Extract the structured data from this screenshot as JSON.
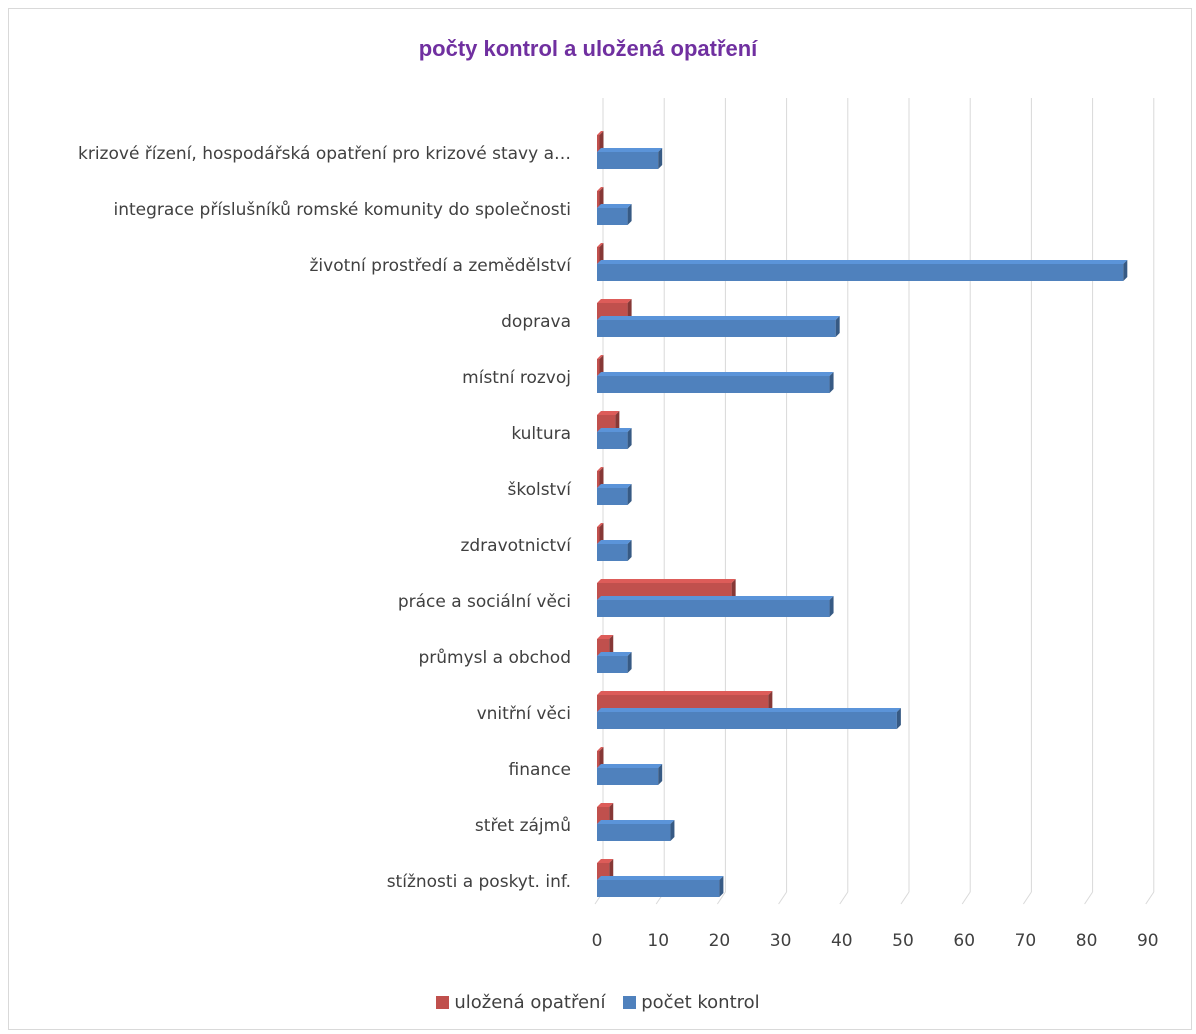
{
  "chart_data": {
    "type": "bar",
    "orientation": "horizontal",
    "title": "počty kontrol a uložená opatření",
    "title_color": "#7030a0",
    "categories": [
      "krizové řízení, hospodářská opatření pro krizové stavy a…",
      "integrace příslušníků romské komunity do společnosti",
      "životní prostředí a zemědělství",
      "doprava",
      "místní rozvoj",
      "kultura",
      "školství",
      "zdravotnictví",
      "práce a sociální věci",
      "průmysl a obchod",
      "vnitřní věci",
      "finance",
      "střet zájmů",
      "stížnosti a poskyt. inf."
    ],
    "series": [
      {
        "name": "uložená opatření",
        "color": "#c0504d",
        "values": [
          0,
          0,
          0,
          5,
          0,
          3,
          0,
          0,
          22,
          2,
          28,
          0,
          2,
          2
        ]
      },
      {
        "name": "počet kontrol",
        "color": "#4f81bd",
        "values": [
          10,
          5,
          86,
          39,
          38,
          5,
          5,
          5,
          38,
          5,
          49,
          10,
          12,
          20
        ]
      }
    ],
    "xlim": [
      0,
      90
    ],
    "xticks": [
      "0",
      "10",
      "20",
      "30",
      "40",
      "50",
      "60",
      "70",
      "80",
      "90"
    ],
    "grid": true,
    "legend_position": "bottom"
  }
}
